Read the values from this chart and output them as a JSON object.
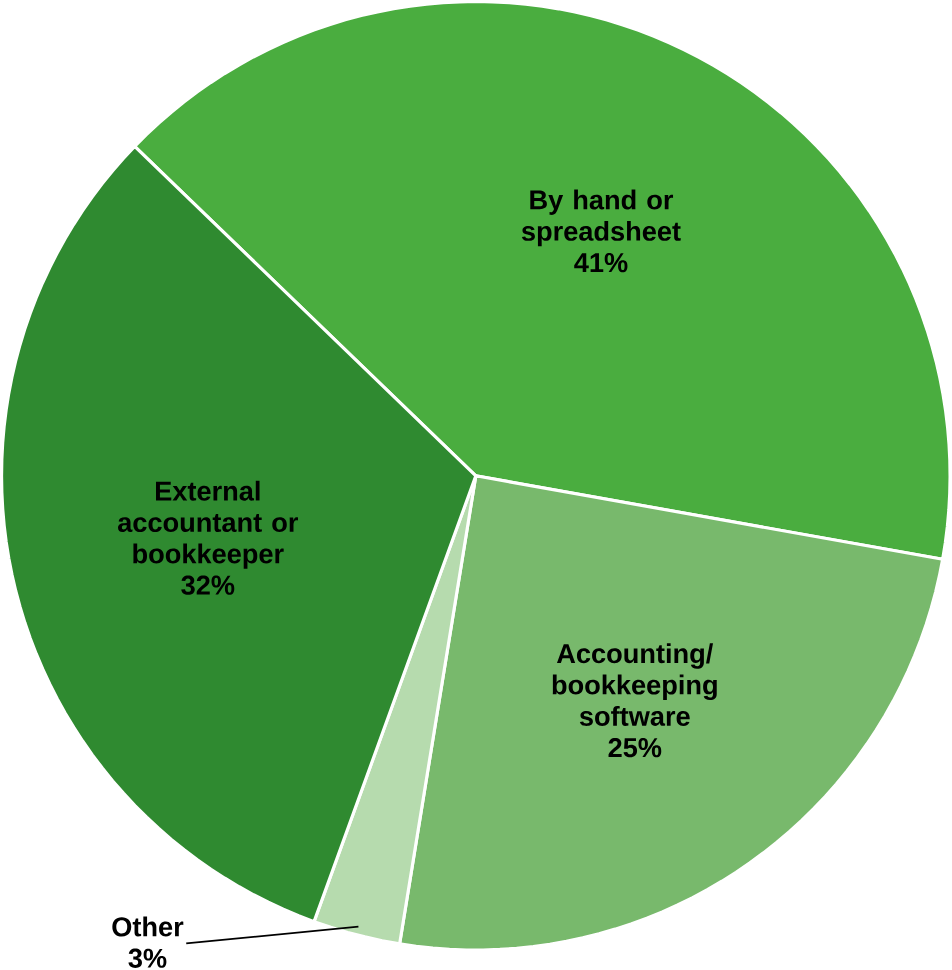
{
  "chart_data": {
    "type": "pie",
    "categories": [
      "By hand or spreadsheet",
      "Accounting/ bookkeeping software",
      "Other",
      "External accountant or bookkeeper"
    ],
    "values": [
      41,
      25,
      3,
      32
    ],
    "value_labels": [
      "41%",
      "25%",
      "3%",
      "32%"
    ],
    "colors": [
      "#4aad3f",
      "#78b96c",
      "#b6dbae",
      "#2f8a30"
    ]
  }
}
